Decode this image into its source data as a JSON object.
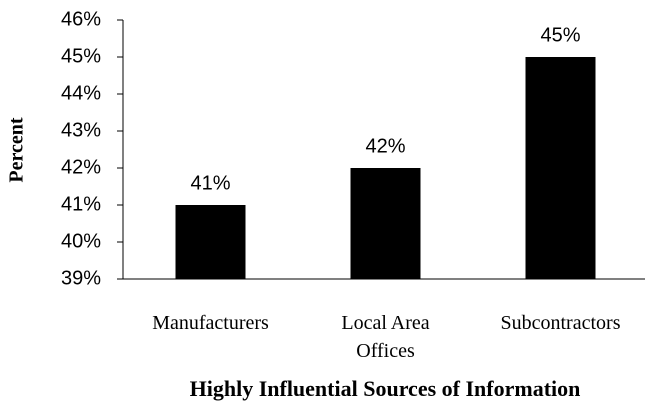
{
  "chart_data": {
    "type": "bar",
    "x_label": "Highly Influential Sources of Information",
    "y_label": "Percent",
    "categories": [
      "Manufacturers",
      "Local Area Offices",
      "Subcontractors"
    ],
    "values": [
      41,
      42,
      45
    ],
    "value_labels": [
      "41%",
      "42%",
      "45%"
    ],
    "color": "#000000",
    "ylim": [
      39,
      46
    ],
    "yticks": [
      {
        "value": 39,
        "label": "39%"
      },
      {
        "value": 40,
        "label": "40%"
      },
      {
        "value": 41,
        "label": "41%"
      },
      {
        "value": 42,
        "label": "42%"
      },
      {
        "value": 43,
        "label": "43%"
      },
      {
        "value": 44,
        "label": "44%"
      },
      {
        "value": 45,
        "label": "45%"
      },
      {
        "value": 46,
        "label": "46%"
      }
    ],
    "grid": false
  }
}
